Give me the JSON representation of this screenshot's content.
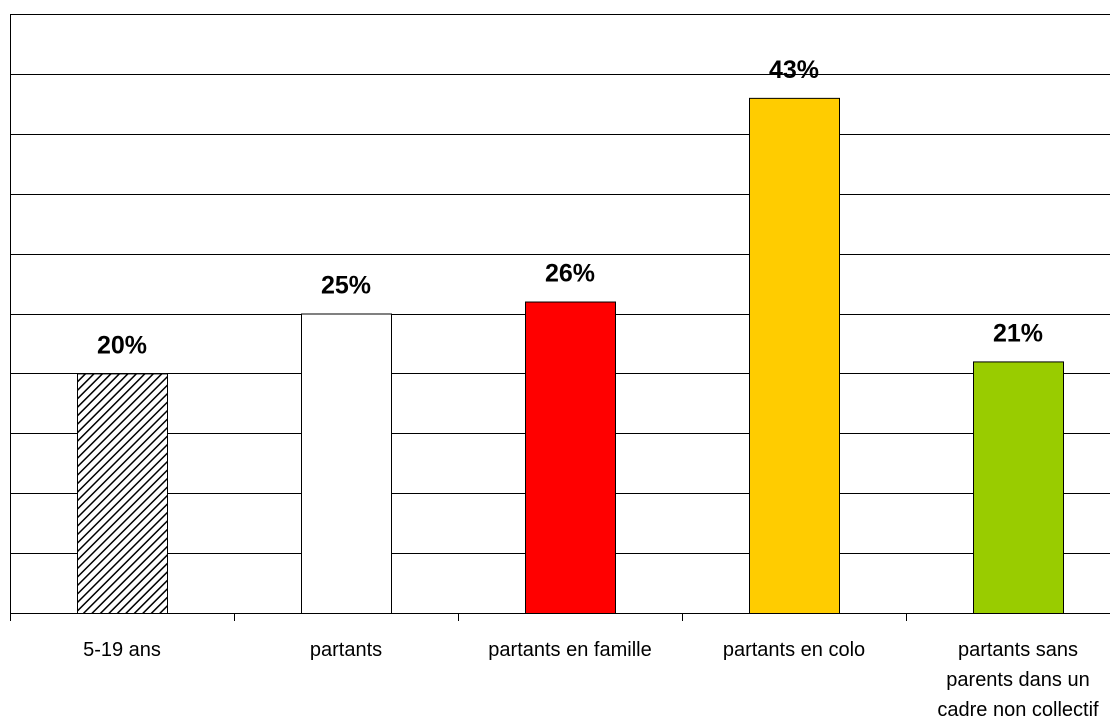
{
  "chart_data": {
    "type": "bar",
    "title": "",
    "xlabel": "",
    "ylabel": "",
    "ylim": [
      0,
      50
    ],
    "grid": true,
    "legend": "none",
    "categories": [
      [
        "5-19 ans"
      ],
      [
        "partants"
      ],
      [
        "partants en famille"
      ],
      [
        "partants en colo"
      ],
      [
        "partants sans",
        "parents dans un",
        "cadre non collectif"
      ]
    ],
    "values": [
      20,
      25,
      26,
      43,
      21
    ],
    "value_labels": [
      "20%",
      "25%",
      "26%",
      "43%",
      "21%"
    ],
    "bar_fills": [
      "hatch",
      "#ffffff",
      "#ff0000",
      "#ffcc00",
      "#99cc00"
    ]
  }
}
